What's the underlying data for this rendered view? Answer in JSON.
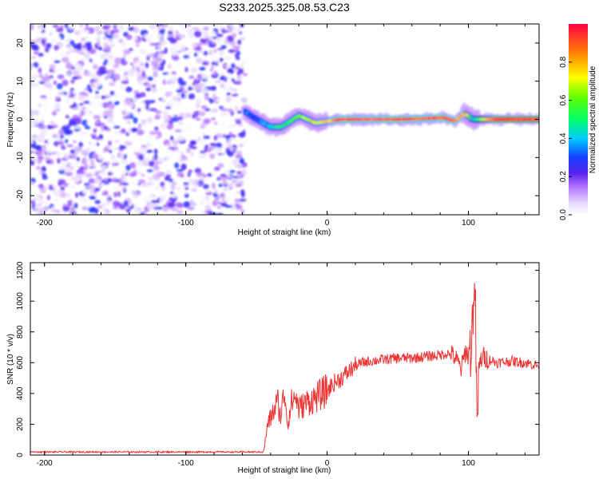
{
  "title": "S233.2025.325.08.53.C23",
  "chart_data": [
    {
      "type": "heatmap",
      "title": "S233.2025.325.08.53.C23",
      "xlabel": "Height of straight line (km)",
      "ylabel": "Frequency (Hz)",
      "xlim": [
        -210,
        150
      ],
      "ylim": [
        -25,
        25
      ],
      "xticks": [
        -200,
        -100,
        0,
        100
      ],
      "yticks": [
        -20,
        -10,
        0,
        10,
        20
      ],
      "noise_region_x": [
        -210,
        -58
      ],
      "noise_amplitude_range": [
        0.0,
        0.3
      ],
      "signal_center_freq_hz": 0,
      "signal_track": [
        {
          "x": -58,
          "freq": 2.0,
          "amp": 0.35
        },
        {
          "x": -52,
          "freq": 0.5,
          "amp": 0.3
        },
        {
          "x": -45,
          "freq": -1.0,
          "amp": 0.35
        },
        {
          "x": -40,
          "freq": -2.0,
          "amp": 0.45
        },
        {
          "x": -33,
          "freq": -2.0,
          "amp": 0.55
        },
        {
          "x": -28,
          "freq": -1.0,
          "amp": 0.5
        },
        {
          "x": -20,
          "freq": 1.0,
          "amp": 0.6
        },
        {
          "x": -14,
          "freq": 0.0,
          "amp": 0.7
        },
        {
          "x": -8,
          "freq": -1.0,
          "amp": 0.75
        },
        {
          "x": 0,
          "freq": -0.5,
          "amp": 0.8
        },
        {
          "x": 10,
          "freq": 0.0,
          "amp": 0.95
        },
        {
          "x": 30,
          "freq": 0.0,
          "amp": 0.9
        },
        {
          "x": 50,
          "freq": 0.0,
          "amp": 0.95
        },
        {
          "x": 70,
          "freq": 0.2,
          "amp": 0.9
        },
        {
          "x": 82,
          "freq": 0.5,
          "amp": 0.95
        },
        {
          "x": 90,
          "freq": -0.5,
          "amp": 0.9
        },
        {
          "x": 97,
          "freq": 1.5,
          "amp": 0.85
        },
        {
          "x": 104,
          "freq": 0.0,
          "amp": 0.4
        },
        {
          "x": 110,
          "freq": 0.0,
          "amp": 0.7
        },
        {
          "x": 120,
          "freq": 0.0,
          "amp": 1.0
        },
        {
          "x": 150,
          "freq": 0.0,
          "amp": 1.0
        }
      ],
      "colorbar": {
        "label": "Normalized spectral amplitude",
        "range": [
          0,
          1
        ],
        "ticks": [
          "0.0",
          "0.2",
          "0.4",
          "0.6",
          "0.8"
        ]
      }
    },
    {
      "type": "line",
      "xlabel": "Height of straight line (km)",
      "ylabel": "SNR (10 * v/v)",
      "xlim": [
        -210,
        150
      ],
      "ylim": [
        0,
        1250
      ],
      "xticks": [
        -200,
        -100,
        0,
        100
      ],
      "yticks": [
        0,
        200,
        400,
        600,
        800,
        1000,
        1200
      ],
      "color": "#ee3333",
      "series": [
        {
          "name": "SNR",
          "x": [
            -210,
            -150,
            -100,
            -60,
            -45,
            -42,
            -38,
            -35,
            -33,
            -30,
            -28,
            -25,
            -22,
            -20,
            -15,
            -10,
            -5,
            0,
            5,
            10,
            15,
            20,
            25,
            30,
            40,
            50,
            60,
            70,
            80,
            85,
            90,
            95,
            98,
            100,
            102,
            104,
            105,
            106,
            108,
            110,
            115,
            120,
            130,
            140,
            150
          ],
          "values": [
            20,
            20,
            20,
            20,
            20,
            200,
            280,
            350,
            250,
            420,
            200,
            350,
            380,
            300,
            340,
            360,
            390,
            420,
            470,
            500,
            540,
            580,
            600,
            610,
            620,
            630,
            630,
            640,
            650,
            660,
            640,
            560,
            680,
            640,
            700,
            1100,
            900,
            200,
            600,
            640,
            620,
            600,
            610,
            600,
            580
          ]
        }
      ]
    }
  ]
}
